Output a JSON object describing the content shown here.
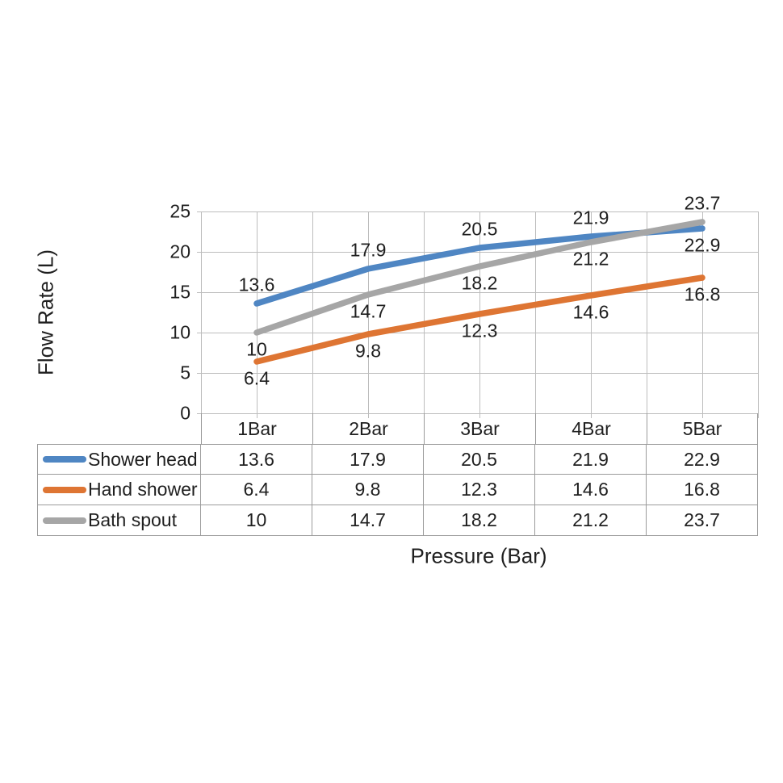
{
  "chart_data": {
    "type": "line",
    "title": "",
    "xlabel": "Pressure (Bar)",
    "ylabel": "Flow Rate (L)",
    "categories": [
      "1Bar",
      "2Bar",
      "3Bar",
      "4Bar",
      "5Bar"
    ],
    "series": [
      {
        "name": "Shower head",
        "color": "#4F86C3",
        "values": [
          13.6,
          17.9,
          20.5,
          21.9,
          22.9
        ],
        "label_side": [
          "above",
          "above",
          "above",
          "above",
          "below"
        ]
      },
      {
        "name": "Hand shower",
        "color": "#DE7533",
        "values": [
          6.4,
          9.8,
          12.3,
          14.6,
          16.8
        ],
        "label_side": [
          "below",
          "below",
          "below",
          "below",
          "below"
        ]
      },
      {
        "name": "Bath spout",
        "color": "#A6A6A6",
        "values": [
          10,
          14.7,
          18.2,
          21.2,
          23.7
        ],
        "label_side": [
          "below",
          "below",
          "below",
          "below",
          "above"
        ]
      }
    ],
    "y_ticks": [
      0,
      5,
      10,
      15,
      20,
      25
    ],
    "ylim": [
      0,
      25
    ],
    "grid": true,
    "data_table": true,
    "legend_position": "data-table-left"
  },
  "colors": {
    "background": "#ffffff",
    "gridline": "#bdbdbd",
    "table_border": "#9b9b9b",
    "text": "#1f1f1f"
  }
}
